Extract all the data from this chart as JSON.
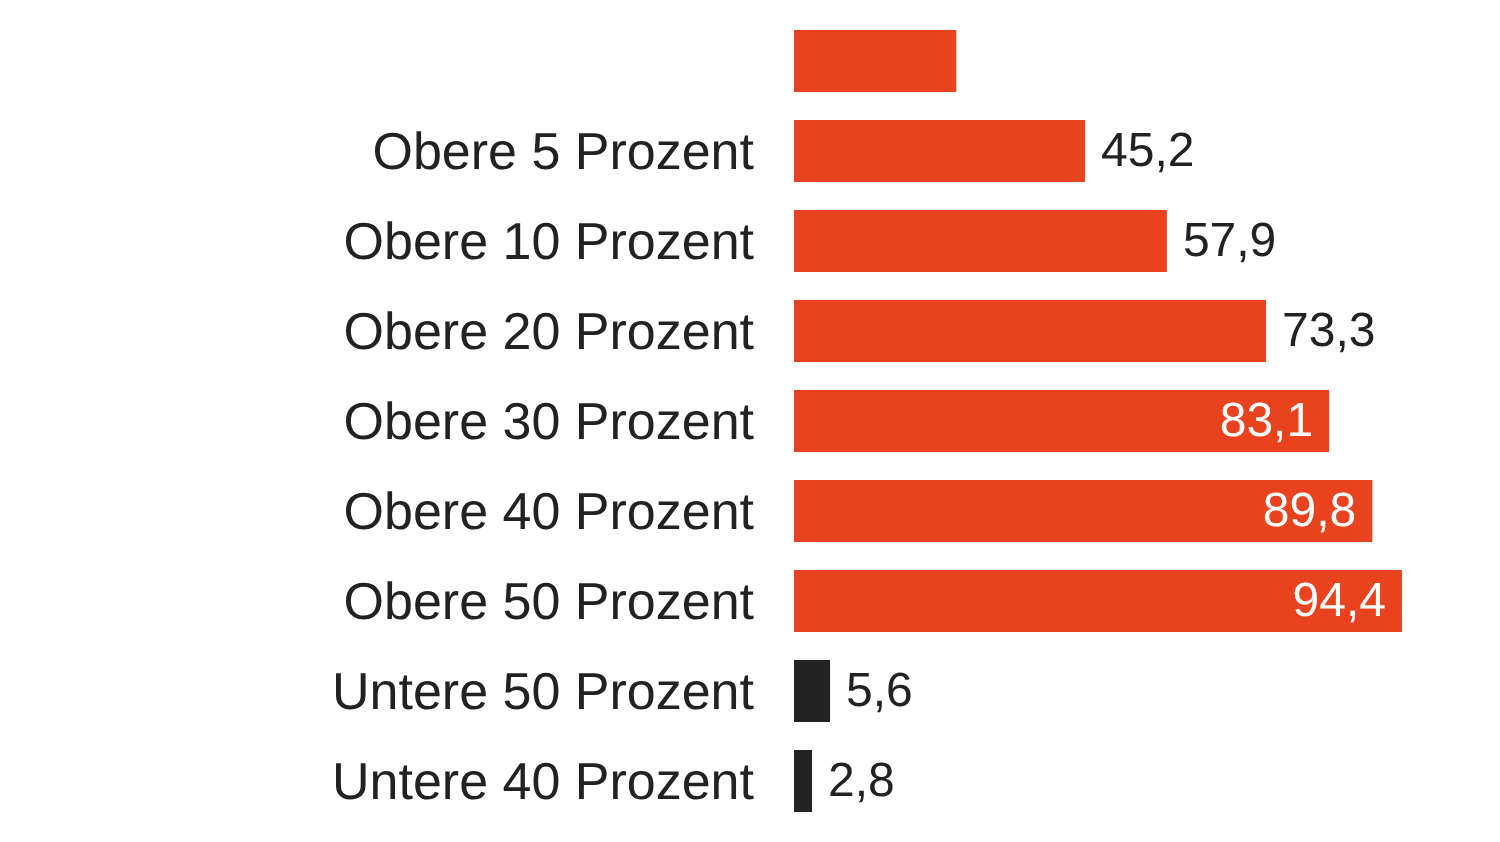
{
  "chart_data": {
    "type": "bar",
    "orientation": "horizontal",
    "categories": [
      null,
      "Obere 5 Prozent",
      "Obere 10 Prozent",
      "Obere 20 Prozent",
      "Obere 30 Prozent",
      "Obere 40 Prozent",
      "Obere 50 Prozent",
      "Untere 50 Prozent",
      "Untere 40 Prozent"
    ],
    "values": [
      25.2,
      45.2,
      57.9,
      73.3,
      83.1,
      89.8,
      94.4,
      5.6,
      2.8
    ],
    "value_labels": [
      null,
      "45,2",
      "57,9",
      "73,3",
      "83,1",
      "89,8",
      "94,4",
      "5,6",
      "2,8"
    ],
    "colors": [
      "#e8431e",
      "#e8431e",
      "#e8431e",
      "#e8431e",
      "#e8431e",
      "#e8431e",
      "#e8431e",
      "#222222",
      "#222222"
    ]
  }
}
